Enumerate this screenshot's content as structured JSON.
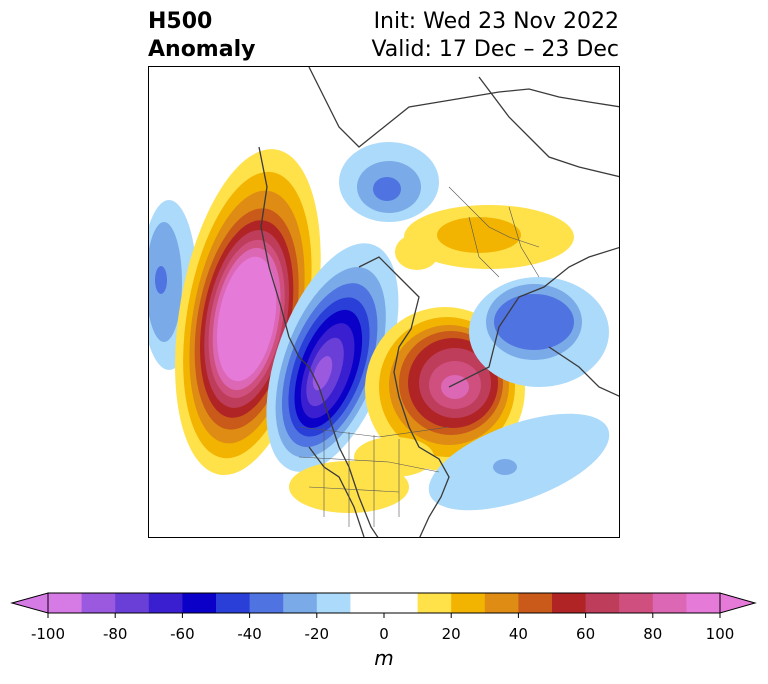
{
  "title": {
    "left_line1": "H500",
    "left_line2": "Anomaly",
    "right_line1": "Init: Wed 23 Nov 2022",
    "right_line2": "Valid: 17 Dec – 23 Dec"
  },
  "colorbar": {
    "label": "m",
    "ticks": [
      "-100",
      "-80",
      "-60",
      "-40",
      "-20",
      "0",
      "20",
      "40",
      "60",
      "80",
      "100"
    ],
    "colors": [
      "#d67ae6",
      "#9b59e0",
      "#6a3fd8",
      "#3a1fd0",
      "#0b00c8",
      "#2a3fd8",
      "#4f73e0",
      "#7aaae8",
      "#acdafa",
      "#ffffff",
      "#ffe14a",
      "#f2b400",
      "#df8c14",
      "#c95a19",
      "#b02426",
      "#be3d5a",
      "#cf507e",
      "#db67b5",
      "#e57ad9"
    ],
    "extend": "both"
  },
  "map": {
    "projection": "north-polar-stereographic",
    "features": [
      "coastlines",
      "country-borders",
      "us-state-borders",
      "filled-anomaly-contours"
    ]
  }
}
